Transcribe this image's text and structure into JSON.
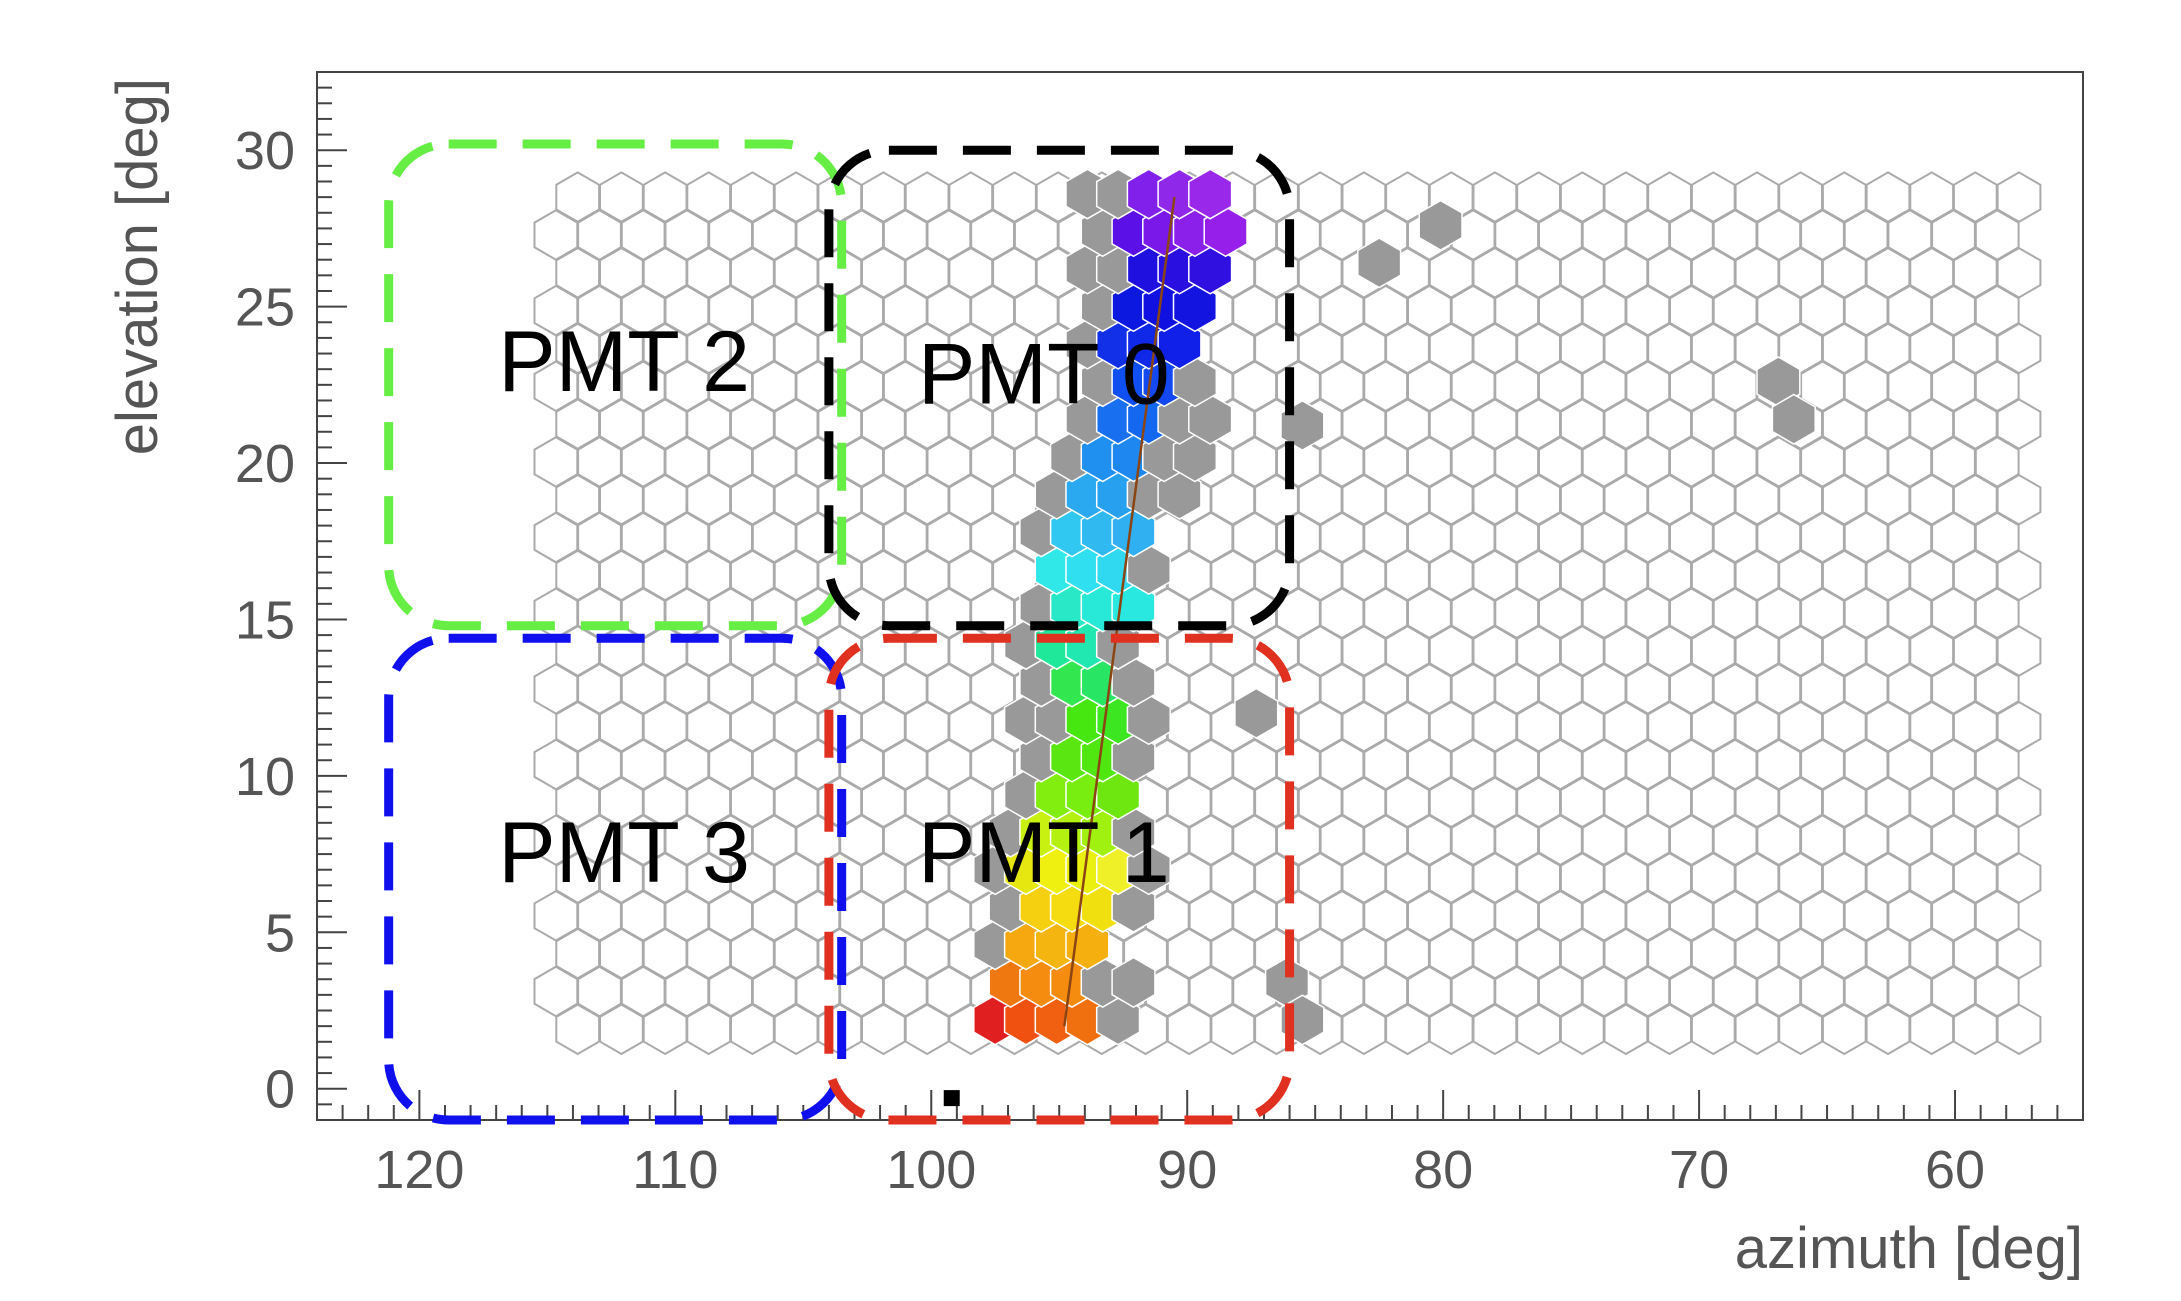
{
  "chart_data": {
    "type": "heatmap",
    "title": "",
    "xlabel": "azimuth  [deg]",
    "ylabel": "elevation  [deg]",
    "xlim": [
      124,
      55
    ],
    "ylim": [
      -1,
      32.5
    ],
    "x_reversed": true,
    "grid": false,
    "xticks": [
      120,
      110,
      100,
      90,
      80,
      70,
      60
    ],
    "yticks": [
      0,
      5,
      10,
      15,
      20,
      25,
      30
    ],
    "camera_pixels": {
      "shape": "hexagon",
      "azimuth_range": [
        57.5,
        121.5
      ],
      "elevation_range": [
        1.9,
        28.5
      ],
      "rows": 23,
      "columns": 34,
      "empty_fill": "#ffffff",
      "edge_color": "#aaaaaa"
    },
    "fit_line": {
      "color": "#8b4513",
      "points": [
        {
          "x": 94.8,
          "y": 2.0
        },
        {
          "x": 90.5,
          "y": 28.5
        }
      ]
    },
    "hit_pixels": [
      {
        "x": 97.5,
        "y": 2.2,
        "color": "#e02020"
      },
      {
        "x": 96.3,
        "y": 2.2,
        "color": "#f05010"
      },
      {
        "x": 95.1,
        "y": 2.2,
        "color": "#f06010"
      },
      {
        "x": 93.9,
        "y": 2.2,
        "color": "#f07010"
      },
      {
        "x": 92.7,
        "y": 2.2,
        "color": "#999999"
      },
      {
        "x": 96.9,
        "y": 3.4,
        "color": "#f07810"
      },
      {
        "x": 95.7,
        "y": 3.4,
        "color": "#f58c10"
      },
      {
        "x": 94.5,
        "y": 3.4,
        "color": "#f58c10"
      },
      {
        "x": 93.3,
        "y": 3.4,
        "color": "#999999"
      },
      {
        "x": 92.1,
        "y": 3.4,
        "color": "#999999"
      },
      {
        "x": 97.5,
        "y": 4.6,
        "color": "#999999"
      },
      {
        "x": 96.3,
        "y": 4.6,
        "color": "#f5a810"
      },
      {
        "x": 95.1,
        "y": 4.6,
        "color": "#f5b510"
      },
      {
        "x": 93.9,
        "y": 4.6,
        "color": "#f5b010"
      },
      {
        "x": 96.9,
        "y": 5.8,
        "color": "#999999"
      },
      {
        "x": 95.7,
        "y": 5.8,
        "color": "#f5d010"
      },
      {
        "x": 94.5,
        "y": 5.8,
        "color": "#f5dc10"
      },
      {
        "x": 93.3,
        "y": 5.8,
        "color": "#f0e010"
      },
      {
        "x": 92.1,
        "y": 5.8,
        "color": "#999999"
      },
      {
        "x": 97.5,
        "y": 7.0,
        "color": "#999999"
      },
      {
        "x": 96.3,
        "y": 7.0,
        "color": "#e6e610"
      },
      {
        "x": 95.1,
        "y": 7.0,
        "color": "#f0f010"
      },
      {
        "x": 93.9,
        "y": 7.0,
        "color": "#eaf010"
      },
      {
        "x": 92.7,
        "y": 7.0,
        "color": "#f0f028"
      },
      {
        "x": 91.5,
        "y": 7.0,
        "color": "#999999"
      },
      {
        "x": 96.9,
        "y": 8.2,
        "color": "#999999"
      },
      {
        "x": 95.7,
        "y": 8.2,
        "color": "#c8f010"
      },
      {
        "x": 94.5,
        "y": 8.2,
        "color": "#b4f010"
      },
      {
        "x": 93.3,
        "y": 8.2,
        "color": "#a0f010"
      },
      {
        "x": 92.1,
        "y": 8.2,
        "color": "#999999"
      },
      {
        "x": 96.3,
        "y": 9.4,
        "color": "#999999"
      },
      {
        "x": 95.1,
        "y": 9.4,
        "color": "#82ee10"
      },
      {
        "x": 93.9,
        "y": 9.4,
        "color": "#78ee10"
      },
      {
        "x": 92.7,
        "y": 9.4,
        "color": "#6ee610"
      },
      {
        "x": 95.7,
        "y": 10.6,
        "color": "#999999"
      },
      {
        "x": 94.5,
        "y": 10.6,
        "color": "#5ae610"
      },
      {
        "x": 93.3,
        "y": 10.6,
        "color": "#50e610"
      },
      {
        "x": 92.1,
        "y": 10.6,
        "color": "#999999"
      },
      {
        "x": 96.3,
        "y": 11.8,
        "color": "#999999"
      },
      {
        "x": 95.1,
        "y": 11.8,
        "color": "#999999"
      },
      {
        "x": 93.9,
        "y": 11.8,
        "color": "#46e610"
      },
      {
        "x": 92.7,
        "y": 11.8,
        "color": "#3ce620"
      },
      {
        "x": 91.5,
        "y": 11.8,
        "color": "#999999"
      },
      {
        "x": 95.7,
        "y": 13.0,
        "color": "#999999"
      },
      {
        "x": 94.5,
        "y": 13.0,
        "color": "#32e650"
      },
      {
        "x": 93.3,
        "y": 13.0,
        "color": "#28e664"
      },
      {
        "x": 92.1,
        "y": 13.0,
        "color": "#999999"
      },
      {
        "x": 96.3,
        "y": 14.2,
        "color": "#999999"
      },
      {
        "x": 95.1,
        "y": 14.2,
        "color": "#20e89a"
      },
      {
        "x": 93.9,
        "y": 14.2,
        "color": "#20e8b0"
      },
      {
        "x": 92.7,
        "y": 14.2,
        "color": "#999999"
      },
      {
        "x": 95.7,
        "y": 15.4,
        "color": "#999999"
      },
      {
        "x": 94.5,
        "y": 15.4,
        "color": "#28e8c8"
      },
      {
        "x": 93.3,
        "y": 15.4,
        "color": "#28e8d8"
      },
      {
        "x": 92.1,
        "y": 15.4,
        "color": "#28e8e0"
      },
      {
        "x": 95.1,
        "y": 16.6,
        "color": "#30e8e8"
      },
      {
        "x": 93.9,
        "y": 16.6,
        "color": "#30e0f0"
      },
      {
        "x": 92.7,
        "y": 16.6,
        "color": "#30d8f0"
      },
      {
        "x": 91.5,
        "y": 16.6,
        "color": "#999999"
      },
      {
        "x": 95.7,
        "y": 17.8,
        "color": "#999999"
      },
      {
        "x": 94.5,
        "y": 17.8,
        "color": "#30c8f0"
      },
      {
        "x": 93.3,
        "y": 17.8,
        "color": "#30b8f0"
      },
      {
        "x": 92.1,
        "y": 17.8,
        "color": "#30b0f0"
      },
      {
        "x": 95.1,
        "y": 19.0,
        "color": "#999999"
      },
      {
        "x": 93.9,
        "y": 19.0,
        "color": "#2aa8f0"
      },
      {
        "x": 92.7,
        "y": 19.0,
        "color": "#28a0f0"
      },
      {
        "x": 91.5,
        "y": 19.0,
        "color": "#999999"
      },
      {
        "x": 90.3,
        "y": 19.0,
        "color": "#999999"
      },
      {
        "x": 94.5,
        "y": 20.2,
        "color": "#999999"
      },
      {
        "x": 93.3,
        "y": 20.2,
        "color": "#2090f0"
      },
      {
        "x": 92.1,
        "y": 20.2,
        "color": "#1e88f0"
      },
      {
        "x": 90.9,
        "y": 20.2,
        "color": "#999999"
      },
      {
        "x": 89.7,
        "y": 20.2,
        "color": "#999999"
      },
      {
        "x": 93.9,
        "y": 21.4,
        "color": "#999999"
      },
      {
        "x": 92.7,
        "y": 21.4,
        "color": "#1870f0"
      },
      {
        "x": 91.5,
        "y": 21.4,
        "color": "#1468f0"
      },
      {
        "x": 90.3,
        "y": 21.4,
        "color": "#999999"
      },
      {
        "x": 89.1,
        "y": 21.4,
        "color": "#999999"
      },
      {
        "x": 93.3,
        "y": 22.6,
        "color": "#999999"
      },
      {
        "x": 92.1,
        "y": 22.6,
        "color": "#1050f0"
      },
      {
        "x": 90.9,
        "y": 22.6,
        "color": "#1448f0"
      },
      {
        "x": 89.7,
        "y": 22.6,
        "color": "#999999"
      },
      {
        "x": 93.9,
        "y": 23.8,
        "color": "#999999"
      },
      {
        "x": 92.7,
        "y": 23.8,
        "color": "#1230e8"
      },
      {
        "x": 91.5,
        "y": 23.8,
        "color": "#1028e8"
      },
      {
        "x": 90.3,
        "y": 23.8,
        "color": "#1020e8"
      },
      {
        "x": 93.3,
        "y": 25.0,
        "color": "#999999"
      },
      {
        "x": 92.1,
        "y": 25.0,
        "color": "#0c18e0"
      },
      {
        "x": 90.9,
        "y": 25.0,
        "color": "#1010e0"
      },
      {
        "x": 89.7,
        "y": 25.0,
        "color": "#1414e0"
      },
      {
        "x": 93.9,
        "y": 26.2,
        "color": "#999999"
      },
      {
        "x": 92.7,
        "y": 26.2,
        "color": "#999999"
      },
      {
        "x": 91.5,
        "y": 26.2,
        "color": "#2010e0"
      },
      {
        "x": 90.3,
        "y": 26.2,
        "color": "#2a10e0"
      },
      {
        "x": 89.1,
        "y": 26.2,
        "color": "#3010e0"
      },
      {
        "x": 93.3,
        "y": 27.4,
        "color": "#999999"
      },
      {
        "x": 92.1,
        "y": 27.4,
        "color": "#5a10e6"
      },
      {
        "x": 90.9,
        "y": 27.4,
        "color": "#7a18ea"
      },
      {
        "x": 89.7,
        "y": 27.4,
        "color": "#8a20ea"
      },
      {
        "x": 88.5,
        "y": 27.4,
        "color": "#9620ea"
      },
      {
        "x": 93.9,
        "y": 28.6,
        "color": "#999999"
      },
      {
        "x": 92.7,
        "y": 28.6,
        "color": "#999999"
      },
      {
        "x": 91.5,
        "y": 28.6,
        "color": "#8020ea"
      },
      {
        "x": 90.3,
        "y": 28.6,
        "color": "#9028ea"
      },
      {
        "x": 89.1,
        "y": 28.6,
        "color": "#9a28ea"
      },
      {
        "x": 82.5,
        "y": 26.4,
        "color": "#999999"
      },
      {
        "x": 80.1,
        "y": 27.6,
        "color": "#999999"
      },
      {
        "x": 66.9,
        "y": 22.6,
        "color": "#999999"
      },
      {
        "x": 66.3,
        "y": 21.4,
        "color": "#999999"
      },
      {
        "x": 85.5,
        "y": 21.2,
        "color": "#999999"
      },
      {
        "x": 86.1,
        "y": 3.4,
        "color": "#999999"
      },
      {
        "x": 85.5,
        "y": 2.2,
        "color": "#999999"
      },
      {
        "x": 87.3,
        "y": 12.0,
        "color": "#999999"
      }
    ],
    "regions": [
      {
        "label": "PMT 2",
        "x": [
          121.2,
          103.5
        ],
        "y": [
          14.8,
          30.2
        ],
        "color": "#66ee44",
        "label_pos": {
          "x": 112.0,
          "y": 22.3
        }
      },
      {
        "label": "PMT 0",
        "x": [
          104.0,
          86.0
        ],
        "y": [
          14.8,
          30.0
        ],
        "color": "#000000",
        "label_pos": {
          "x": 95.6,
          "y": 21.9
        }
      },
      {
        "label": "PMT 3",
        "x": [
          121.2,
          103.5
        ],
        "y": [
          -1.0,
          14.4
        ],
        "color": "#1010ee",
        "label_pos": {
          "x": 112.0,
          "y": 6.6
        }
      },
      {
        "label": "PMT 1",
        "x": [
          104.0,
          86.0
        ],
        "y": [
          -1.0,
          14.4
        ],
        "color": "#e03020",
        "label_pos": {
          "x": 95.6,
          "y": 6.6
        }
      }
    ],
    "marker": {
      "x": 99.2,
      "y": -0.3,
      "color": "#000000"
    }
  }
}
